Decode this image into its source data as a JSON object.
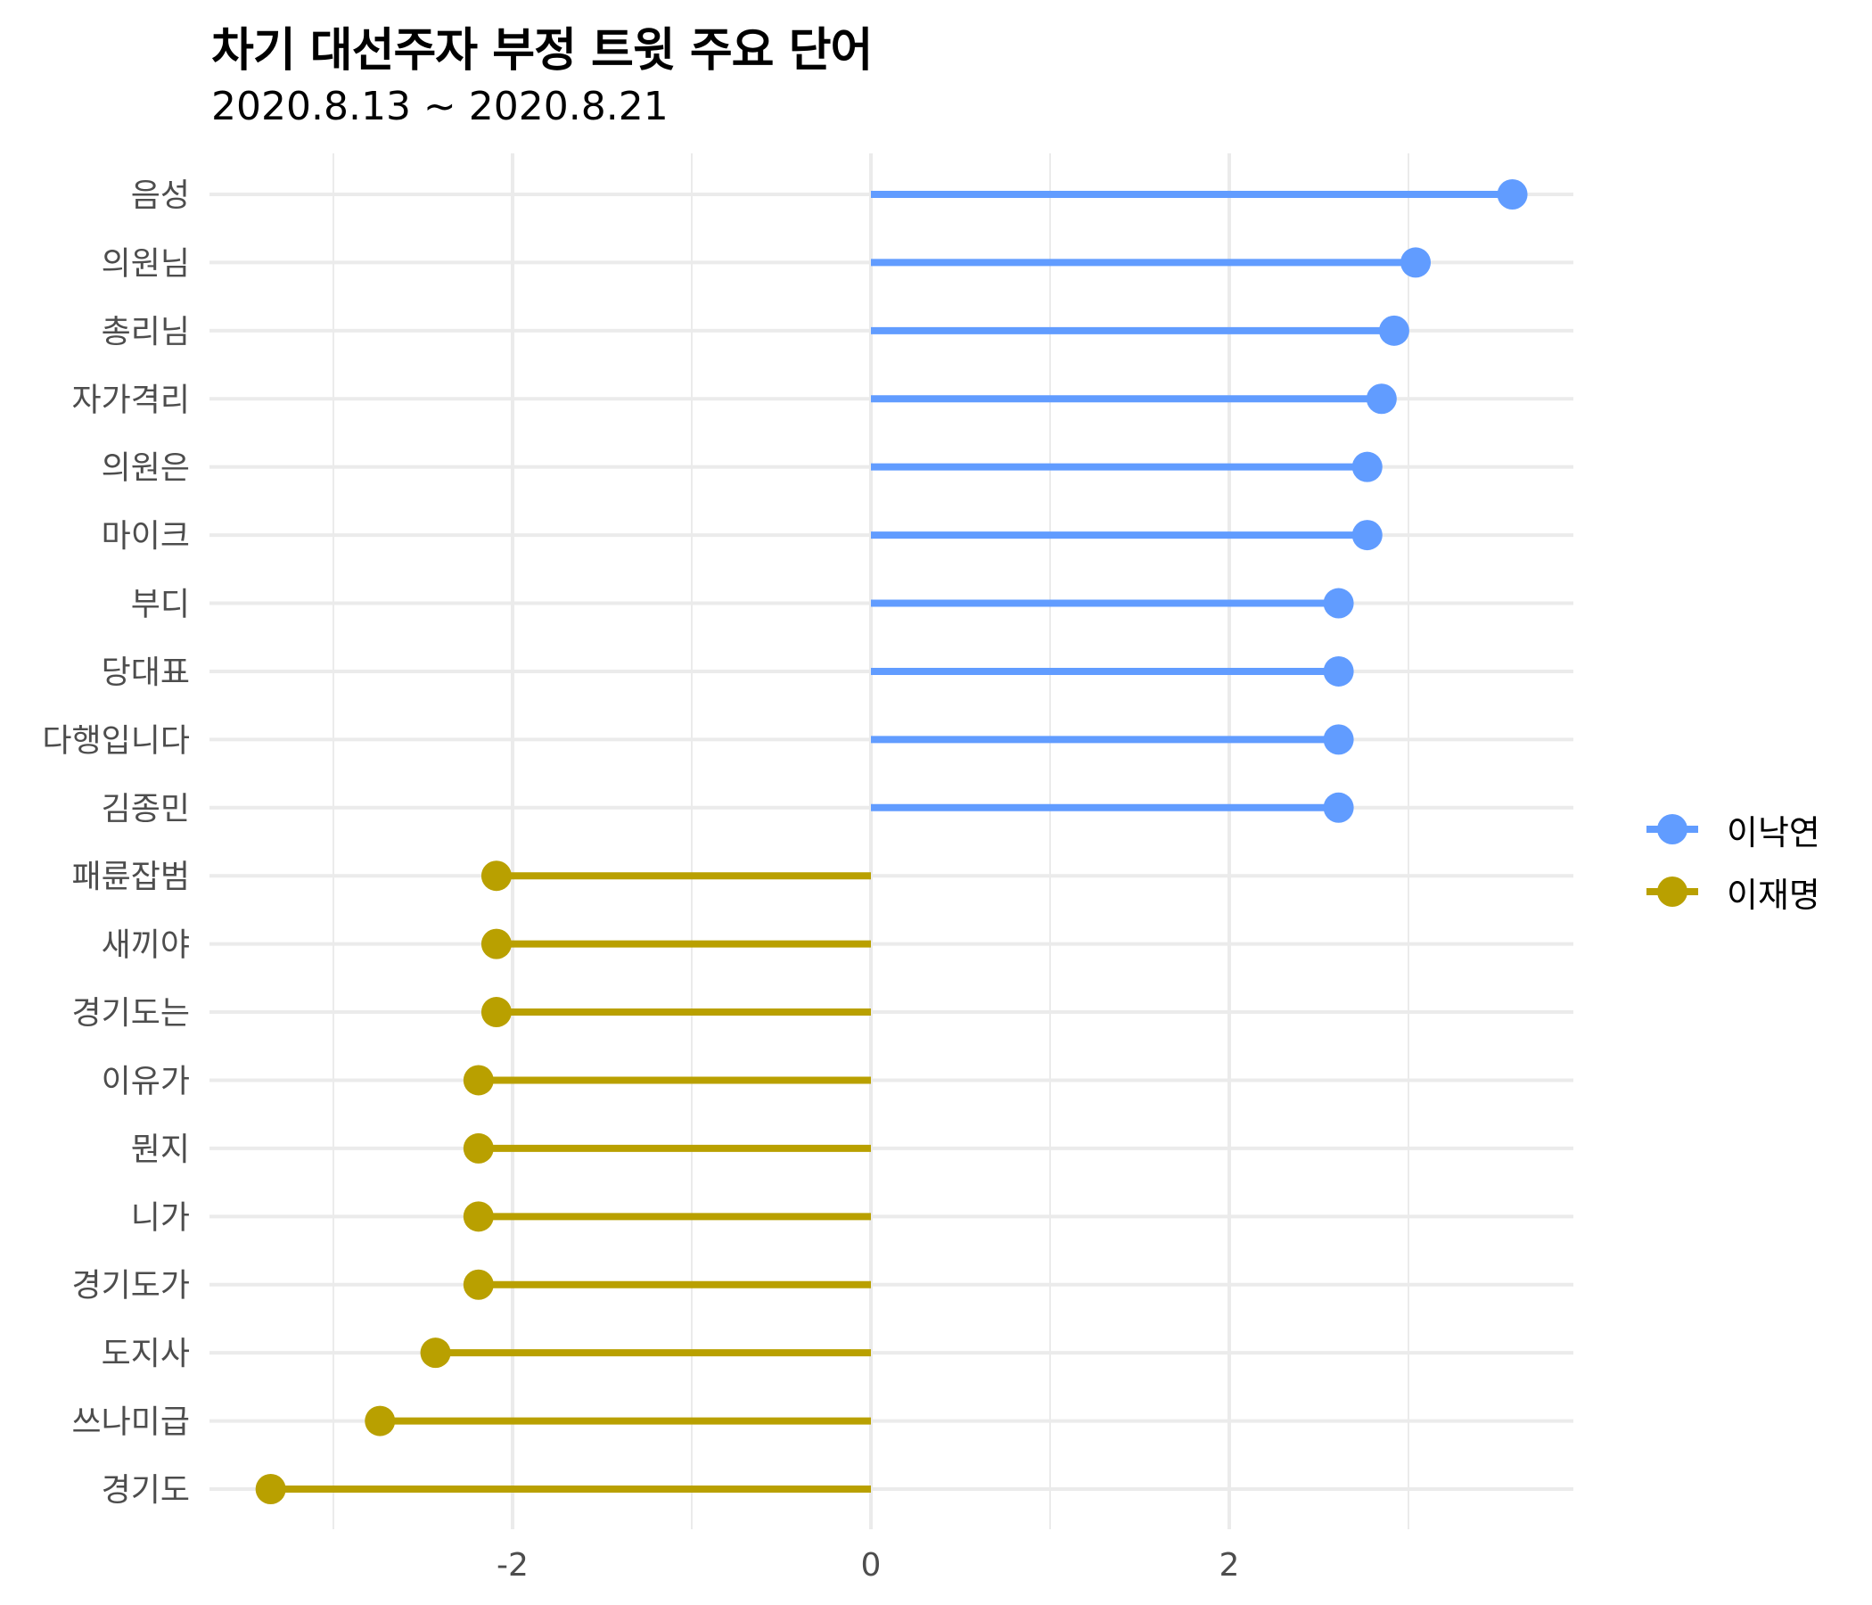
{
  "header": {
    "title": "차기 대선주자 부정 트윗 주요 단어",
    "subtitle": "2020.8.13 ~ 2020.8.21"
  },
  "legend": {
    "items": [
      {
        "label": "이낙연",
        "color": "#619CFF"
      },
      {
        "label": "이재명",
        "color": "#B9A000"
      }
    ]
  },
  "colors": {
    "이낙연": "#619CFF",
    "이재명": "#B9A000",
    "grid": "#EBEBEB",
    "axis_text": "#4D4D4D"
  },
  "chart_data": {
    "type": "lollipop",
    "title": "차기 대선주자 부정 트윗 주요 단어",
    "subtitle": "2020.8.13 ~ 2020.8.21",
    "xlabel": "",
    "ylabel": "",
    "xlim": [
      -3.5,
      3.9
    ],
    "x_ticks": [
      -2,
      0,
      2
    ],
    "x_minor_gridlines": [
      -3,
      -1,
      1,
      3
    ],
    "grid": true,
    "legend_position": "right",
    "categories": [
      "음성",
      "의원님",
      "총리님",
      "자가격리",
      "의원은",
      "마이크",
      "부디",
      "당대표",
      "다행입니다",
      "김종민",
      "패륜잡범",
      "새끼야",
      "경기도는",
      "이유가",
      "뭔지",
      "니가",
      "경기도가",
      "도지사",
      "쓰나미급",
      "경기도"
    ],
    "points": [
      {
        "word": "음성",
        "value": 3.58,
        "series": "이낙연"
      },
      {
        "word": "의원님",
        "value": 3.04,
        "series": "이낙연"
      },
      {
        "word": "총리님",
        "value": 2.92,
        "series": "이낙연"
      },
      {
        "word": "자가격리",
        "value": 2.85,
        "series": "이낙연"
      },
      {
        "word": "의원은",
        "value": 2.77,
        "series": "이낙연"
      },
      {
        "word": "마이크",
        "value": 2.77,
        "series": "이낙연"
      },
      {
        "word": "부디",
        "value": 2.61,
        "series": "이낙연"
      },
      {
        "word": "당대표",
        "value": 2.61,
        "series": "이낙연"
      },
      {
        "word": "다행입니다",
        "value": 2.61,
        "series": "이낙연"
      },
      {
        "word": "김종민",
        "value": 2.61,
        "series": "이낙연"
      },
      {
        "word": "패륜잡범",
        "value": -2.09,
        "series": "이재명"
      },
      {
        "word": "새끼야",
        "value": -2.09,
        "series": "이재명"
      },
      {
        "word": "경기도는",
        "value": -2.09,
        "series": "이재명"
      },
      {
        "word": "이유가",
        "value": -2.19,
        "series": "이재명"
      },
      {
        "word": "뭔지",
        "value": -2.19,
        "series": "이재명"
      },
      {
        "word": "니가",
        "value": -2.19,
        "series": "이재명"
      },
      {
        "word": "경기도가",
        "value": -2.19,
        "series": "이재명"
      },
      {
        "word": "도지사",
        "value": -2.43,
        "series": "이재명"
      },
      {
        "word": "쓰나미급",
        "value": -2.74,
        "series": "이재명"
      },
      {
        "word": "경기도",
        "value": -3.35,
        "series": "이재명"
      }
    ],
    "series": [
      {
        "name": "이낙연",
        "color": "#619CFF"
      },
      {
        "name": "이재명",
        "color": "#B9A000"
      }
    ]
  }
}
